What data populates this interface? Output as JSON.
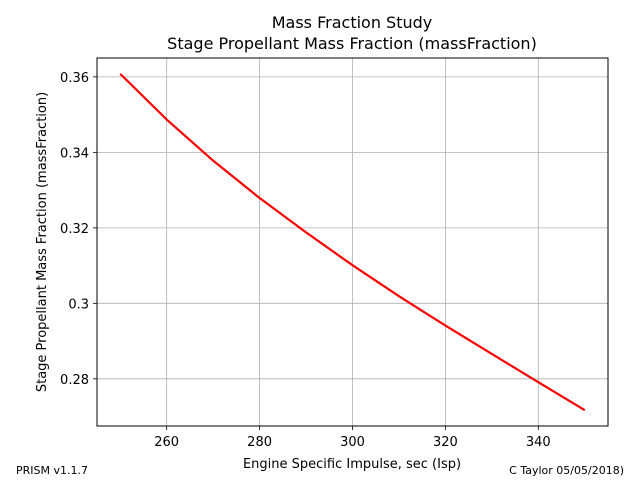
{
  "chart_data": {
    "type": "line",
    "title": "Mass Fraction Study",
    "subtitle": "Stage Propellant Mass Fraction (massFraction)",
    "xlabel": "Engine Specific Impulse, sec (Isp)",
    "ylabel": "Stage Propellant Mass Fraction (massFraction)",
    "xlim": [
      245,
      355
    ],
    "ylim": [
      0.2675,
      0.365
    ],
    "xticks": [
      260,
      280,
      300,
      320,
      340
    ],
    "yticks": [
      0.28,
      0.3,
      0.32,
      0.34,
      0.36
    ],
    "ytick_labels": [
      "0.28",
      "0.3",
      "0.32",
      "0.34",
      "0.36"
    ],
    "grid": true,
    "series": [
      {
        "color": "#ff0000",
        "x": [
          250,
          260,
          270,
          280,
          290,
          300,
          310,
          320,
          330,
          340,
          350
        ],
        "y": [
          0.3608,
          0.3487,
          0.3378,
          0.3279,
          0.3188,
          0.3101,
          0.3019,
          0.2941,
          0.2866,
          0.2791,
          0.2717
        ]
      }
    ]
  },
  "footer": {
    "left": "PRISM v1.1.7",
    "right": "C Taylor 05/05/2018)"
  }
}
